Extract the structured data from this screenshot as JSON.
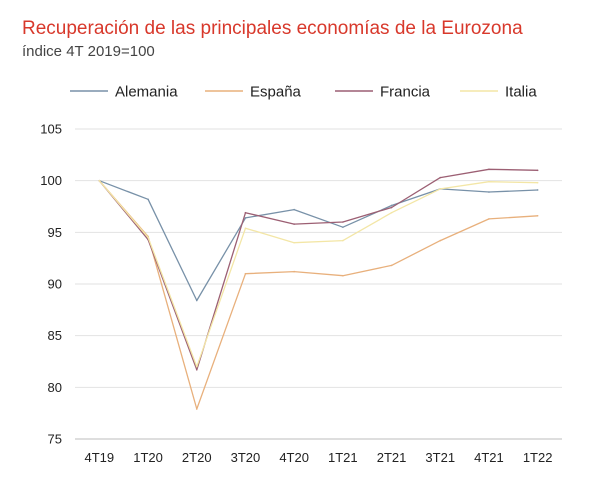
{
  "title": "Recuperación de las principales economías de la Eurozona",
  "subtitle": "índice 4T 2019=100",
  "chart_data": {
    "type": "line",
    "title": "Recuperación de las principales economías de la Eurozona",
    "subtitle": "índice 4T 2019=100",
    "xlabel": "",
    "ylabel": "",
    "categories": [
      "4T19",
      "1T20",
      "2T20",
      "3T20",
      "4T20",
      "1T21",
      "2T21",
      "3T21",
      "4T21",
      "1T22"
    ],
    "ylim": [
      75,
      105
    ],
    "yticks": [
      75,
      80,
      85,
      90,
      95,
      100,
      105
    ],
    "grid": "horizontal",
    "legend": "top",
    "series": [
      {
        "name": "Alemania",
        "color": "#7891a8",
        "values": [
          100,
          98.2,
          88.4,
          96.4,
          97.2,
          95.5,
          97.6,
          99.2,
          98.9,
          99.1
        ]
      },
      {
        "name": "España",
        "color": "#e8b07c",
        "values": [
          100,
          94.6,
          77.9,
          91.0,
          91.2,
          90.8,
          91.8,
          94.2,
          96.3,
          96.6
        ]
      },
      {
        "name": "Francia",
        "color": "#9c5f73",
        "values": [
          100,
          94.3,
          81.7,
          96.9,
          95.8,
          96.0,
          97.4,
          100.3,
          101.1,
          101.0
        ]
      },
      {
        "name": "Italia",
        "color": "#f3e6a6",
        "values": [
          100,
          94.5,
          82.0,
          95.4,
          94.0,
          94.2,
          96.9,
          99.2,
          99.9,
          99.8
        ]
      }
    ]
  }
}
